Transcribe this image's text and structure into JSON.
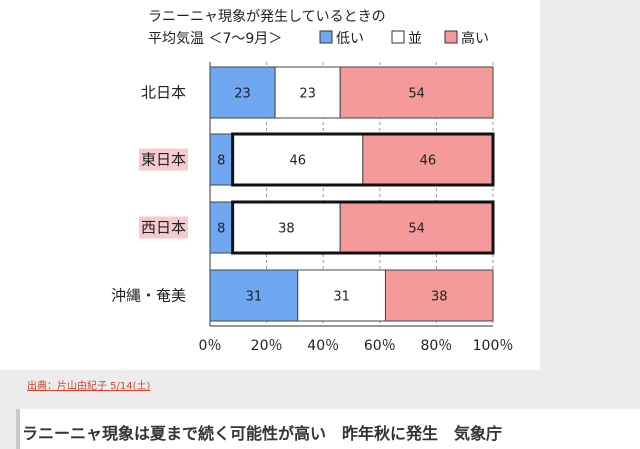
{
  "chart_data": {
    "type": "bar",
    "orientation": "horizontal",
    "stacked": true,
    "title_lines": [
      "ラニーニャ現象が発生しているときの",
      "平均気温 ＜7〜9月＞"
    ],
    "categories": [
      "北日本",
      "東日本",
      "西日本",
      "沖縄・奄美"
    ],
    "highlighted_categories": [
      "東日本",
      "西日本"
    ],
    "bold_outline": [
      {
        "category": "東日本",
        "series": [
          "並",
          "高い"
        ]
      },
      {
        "category": "西日本",
        "series": [
          "並",
          "高い"
        ]
      }
    ],
    "series": [
      {
        "name": "低い",
        "color": "#6fa8f0",
        "values": [
          23,
          8,
          8,
          31
        ]
      },
      {
        "name": "並",
        "color": "#ffffff",
        "values": [
          23,
          46,
          38,
          31
        ]
      },
      {
        "name": "高い",
        "color": "#f49a9a",
        "values": [
          54,
          46,
          54,
          38
        ]
      }
    ],
    "x_ticks": [
      "0％",
      "20％",
      "40％",
      "60％",
      "80％",
      "100％"
    ],
    "xlim": [
      0,
      100
    ],
    "legend_position": "top-right",
    "grid": "vertical-dashed"
  },
  "source": "出典：片山由紀子 5/14(土)",
  "article": {
    "title": "ラニーニャ現象は夏まで続く可能性が高い　昨年秋に発生　気象庁"
  }
}
